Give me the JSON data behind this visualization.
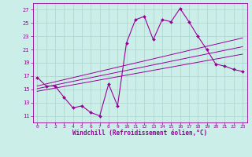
{
  "xlabel": "Windchill (Refroidissement éolien,°C)",
  "background_color": "#cceee8",
  "grid_color": "#aad4ce",
  "line_color": "#990099",
  "x_values": [
    0,
    1,
    2,
    3,
    4,
    5,
    6,
    7,
    8,
    9,
    10,
    11,
    12,
    13,
    14,
    15,
    16,
    17,
    18,
    19,
    20,
    21,
    22,
    23
  ],
  "main_curve": [
    16.8,
    15.5,
    15.5,
    13.8,
    12.2,
    12.5,
    11.5,
    11.0,
    15.8,
    12.5,
    22.0,
    25.5,
    26.0,
    22.5,
    25.5,
    25.2,
    27.2,
    25.2,
    23.0,
    21.0,
    18.8,
    18.5,
    18.0,
    17.7
  ],
  "reg_line1": [
    15.5,
    15.82,
    16.13,
    16.45,
    16.76,
    17.08,
    17.39,
    17.71,
    18.02,
    18.34,
    18.65,
    18.97,
    19.28,
    19.6,
    19.91,
    20.23,
    20.54,
    20.86,
    21.17,
    21.49,
    21.8,
    22.12,
    22.43,
    22.75
  ],
  "reg_line2": [
    15.1,
    15.38,
    15.65,
    15.93,
    16.2,
    16.48,
    16.75,
    17.03,
    17.3,
    17.58,
    17.85,
    18.13,
    18.4,
    18.68,
    18.95,
    19.23,
    19.5,
    19.78,
    20.05,
    20.33,
    20.6,
    20.88,
    21.15,
    21.43
  ],
  "reg_line3": [
    14.7,
    14.95,
    15.19,
    15.43,
    15.68,
    15.92,
    16.16,
    16.41,
    16.65,
    16.89,
    17.14,
    17.38,
    17.62,
    17.87,
    18.11,
    18.35,
    18.6,
    18.84,
    19.08,
    19.33,
    19.57,
    19.81,
    20.06,
    20.3
  ],
  "ylim": [
    10,
    28
  ],
  "xlim": [
    -0.5,
    23.5
  ],
  "yticks": [
    11,
    13,
    15,
    17,
    19,
    21,
    23,
    25,
    27
  ],
  "xticks": [
    0,
    1,
    2,
    3,
    4,
    5,
    6,
    7,
    8,
    9,
    10,
    11,
    12,
    13,
    14,
    15,
    16,
    17,
    18,
    19,
    20,
    21,
    22,
    23
  ]
}
